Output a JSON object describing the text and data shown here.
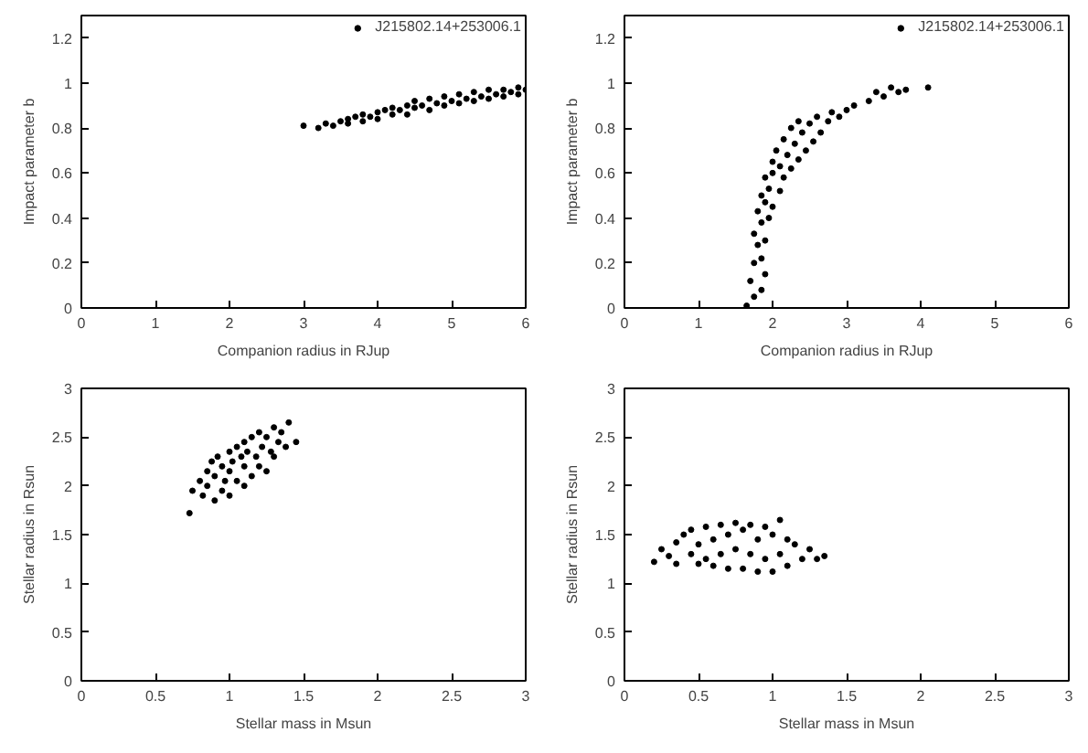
{
  "chart_data": [
    {
      "type": "scatter",
      "xlabel": "Companion radius in RJup",
      "ylabel": "Impact parameter b",
      "xlim": [
        0,
        6
      ],
      "ylim": [
        0,
        1.3
      ],
      "xticks": [
        0,
        1,
        2,
        3,
        4,
        5,
        6
      ],
      "yticks": [
        0,
        0.2,
        0.4,
        0.6,
        0.8,
        1,
        1.2
      ],
      "legend": "top right",
      "marker": "circle",
      "series": [
        {
          "name": "J215802.14+253006.1",
          "color": "#000000",
          "x": [
            3.0,
            3.2,
            3.3,
            3.4,
            3.5,
            3.6,
            3.6,
            3.7,
            3.8,
            3.8,
            3.9,
            4.0,
            4.0,
            4.1,
            4.2,
            4.2,
            4.3,
            4.4,
            4.4,
            4.5,
            4.5,
            4.6,
            4.7,
            4.7,
            4.8,
            4.9,
            4.9,
            5.0,
            5.1,
            5.1,
            5.2,
            5.3,
            5.3,
            5.4,
            5.5,
            5.5,
            5.6,
            5.7,
            5.7,
            5.8,
            5.9,
            5.9,
            6.0
          ],
          "values": [
            0.81,
            0.8,
            0.82,
            0.81,
            0.83,
            0.84,
            0.82,
            0.85,
            0.83,
            0.86,
            0.85,
            0.87,
            0.84,
            0.88,
            0.86,
            0.89,
            0.88,
            0.9,
            0.86,
            0.89,
            0.92,
            0.9,
            0.93,
            0.88,
            0.91,
            0.94,
            0.9,
            0.92,
            0.95,
            0.91,
            0.93,
            0.96,
            0.92,
            0.94,
            0.97,
            0.93,
            0.95,
            0.97,
            0.94,
            0.96,
            0.98,
            0.95,
            0.97
          ]
        }
      ]
    },
    {
      "type": "scatter",
      "xlabel": "Companion radius in RJup",
      "ylabel": "Impact parameter b",
      "xlim": [
        0,
        6
      ],
      "ylim": [
        0,
        1.3
      ],
      "xticks": [
        0,
        1,
        2,
        3,
        4,
        5,
        6
      ],
      "yticks": [
        0,
        0.2,
        0.4,
        0.6,
        0.8,
        1,
        1.2
      ],
      "legend": "top right",
      "marker": "circle",
      "series": [
        {
          "name": "J215802.14+253006.1",
          "color": "#000000",
          "x": [
            1.65,
            1.75,
            1.85,
            1.7,
            1.9,
            1.75,
            1.85,
            1.8,
            1.9,
            1.75,
            1.85,
            1.95,
            1.8,
            1.9,
            2.0,
            1.85,
            1.95,
            2.1,
            1.9,
            2.0,
            2.15,
            2.0,
            2.1,
            2.25,
            2.05,
            2.2,
            2.35,
            2.15,
            2.3,
            2.45,
            2.25,
            2.4,
            2.55,
            2.35,
            2.5,
            2.65,
            2.6,
            2.75,
            2.8,
            2.9,
            3.0,
            3.1,
            3.3,
            3.4,
            3.5,
            3.6,
            3.7,
            3.8,
            4.1
          ],
          "values": [
            0.01,
            0.05,
            0.08,
            0.12,
            0.15,
            0.2,
            0.22,
            0.28,
            0.3,
            0.33,
            0.38,
            0.4,
            0.43,
            0.47,
            0.45,
            0.5,
            0.53,
            0.52,
            0.58,
            0.6,
            0.58,
            0.65,
            0.63,
            0.62,
            0.7,
            0.68,
            0.66,
            0.75,
            0.73,
            0.7,
            0.8,
            0.78,
            0.74,
            0.83,
            0.82,
            0.78,
            0.85,
            0.83,
            0.87,
            0.85,
            0.88,
            0.9,
            0.92,
            0.96,
            0.94,
            0.98,
            0.96,
            0.97,
            0.98
          ]
        }
      ]
    },
    {
      "type": "scatter",
      "xlabel": "Stellar mass in Msun",
      "ylabel": "Stellar radius in Rsun",
      "xlim": [
        0,
        3
      ],
      "ylim": [
        0,
        3
      ],
      "xticks": [
        0,
        0.5,
        1,
        1.5,
        2,
        2.5,
        3
      ],
      "yticks": [
        0,
        0.5,
        1,
        1.5,
        2,
        2.5,
        3
      ],
      "marker": "circle",
      "series": [
        {
          "color": "#000000",
          "x": [
            0.73,
            0.75,
            0.8,
            0.82,
            0.85,
            0.85,
            0.88,
            0.9,
            0.9,
            0.92,
            0.95,
            0.95,
            0.97,
            1.0,
            1.0,
            1.0,
            1.02,
            1.05,
            1.05,
            1.08,
            1.1,
            1.1,
            1.1,
            1.12,
            1.15,
            1.15,
            1.18,
            1.2,
            1.2,
            1.22,
            1.25,
            1.25,
            1.28,
            1.3,
            1.3,
            1.33,
            1.35,
            1.38,
            1.4,
            1.45
          ],
          "values": [
            1.72,
            1.95,
            2.05,
            1.9,
            2.15,
            2.0,
            2.25,
            2.1,
            1.85,
            2.3,
            2.2,
            1.95,
            2.05,
            2.35,
            2.15,
            1.9,
            2.25,
            2.4,
            2.05,
            2.3,
            2.45,
            2.2,
            2.0,
            2.35,
            2.5,
            2.1,
            2.3,
            2.55,
            2.2,
            2.4,
            2.5,
            2.15,
            2.35,
            2.6,
            2.3,
            2.45,
            2.55,
            2.4,
            2.65,
            2.45
          ]
        }
      ]
    },
    {
      "type": "scatter",
      "xlabel": "Stellar mass in Msun",
      "ylabel": "Stellar radius in Rsun",
      "xlim": [
        0,
        3
      ],
      "ylim": [
        0,
        3
      ],
      "xticks": [
        0,
        0.5,
        1,
        1.5,
        2,
        2.5,
        3
      ],
      "yticks": [
        0,
        0.5,
        1,
        1.5,
        2,
        2.5,
        3
      ],
      "marker": "circle",
      "series": [
        {
          "color": "#000000",
          "x": [
            0.2,
            0.25,
            0.3,
            0.35,
            0.35,
            0.4,
            0.45,
            0.45,
            0.5,
            0.5,
            0.55,
            0.55,
            0.6,
            0.6,
            0.65,
            0.65,
            0.7,
            0.7,
            0.75,
            0.75,
            0.8,
            0.8,
            0.85,
            0.85,
            0.9,
            0.9,
            0.95,
            0.95,
            1.0,
            1.0,
            1.05,
            1.05,
            1.1,
            1.1,
            1.15,
            1.2,
            1.25,
            1.3,
            1.35
          ],
          "values": [
            1.22,
            1.35,
            1.28,
            1.42,
            1.2,
            1.5,
            1.3,
            1.55,
            1.4,
            1.2,
            1.58,
            1.25,
            1.45,
            1.18,
            1.6,
            1.3,
            1.5,
            1.15,
            1.62,
            1.35,
            1.55,
            1.15,
            1.6,
            1.3,
            1.45,
            1.12,
            1.58,
            1.25,
            1.5,
            1.12,
            1.65,
            1.3,
            1.45,
            1.18,
            1.4,
            1.25,
            1.35,
            1.25,
            1.28
          ]
        }
      ]
    }
  ]
}
